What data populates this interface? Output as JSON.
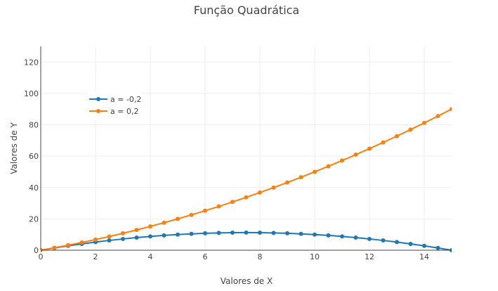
{
  "chart_data": {
    "type": "line",
    "title": "Função Quadrática",
    "xlabel": "Valores de X",
    "ylabel": "Valores de Y",
    "xlim": [
      0,
      15
    ],
    "ylim": [
      0,
      130
    ],
    "xticks": [
      0,
      2,
      4,
      6,
      8,
      10,
      12,
      14
    ],
    "yticks": [
      0,
      20,
      40,
      60,
      80,
      100,
      120
    ],
    "grid": true,
    "legend_position": "top-left",
    "series": [
      {
        "name": "a = -0,2",
        "color": "#1f77b4",
        "x": [
          0,
          0.5,
          1,
          1.5,
          2,
          2.5,
          3,
          3.5,
          4,
          4.5,
          5,
          5.5,
          6,
          6.5,
          7,
          7.5,
          8,
          8.5,
          9,
          9.5,
          10,
          10.5,
          11,
          11.5,
          12,
          12.5,
          13,
          13.5,
          14,
          14.5,
          15
        ],
        "y": [
          0,
          1.45,
          2.8,
          4.05,
          5.2,
          6.25,
          7.2,
          8.05,
          8.8,
          9.45,
          10,
          10.45,
          10.8,
          11.05,
          11.2,
          11.25,
          11.2,
          11.05,
          10.8,
          10.45,
          10,
          9.45,
          8.8,
          8.05,
          7.2,
          6.25,
          5.2,
          4.05,
          2.8,
          1.45,
          0
        ]
      },
      {
        "name": "a = 0,2",
        "color": "#ff7f0e",
        "x": [
          0,
          0.5,
          1,
          1.5,
          2,
          2.5,
          3,
          3.5,
          4,
          4.5,
          5,
          5.5,
          6,
          6.5,
          7,
          7.5,
          8,
          8.5,
          9,
          9.5,
          10,
          10.5,
          11,
          11.5,
          12,
          12.5,
          13,
          13.5,
          14,
          14.5,
          15
        ],
        "y": [
          0,
          1.55,
          3.2,
          4.95,
          6.8,
          8.75,
          10.8,
          12.95,
          15.2,
          17.55,
          20,
          22.55,
          25.2,
          27.95,
          30.8,
          33.75,
          36.8,
          39.95,
          43.2,
          46.55,
          50,
          53.55,
          57.2,
          60.95,
          64.8,
          68.75,
          72.8,
          76.95,
          81.2,
          85.55,
          90
        ]
      }
    ]
  }
}
